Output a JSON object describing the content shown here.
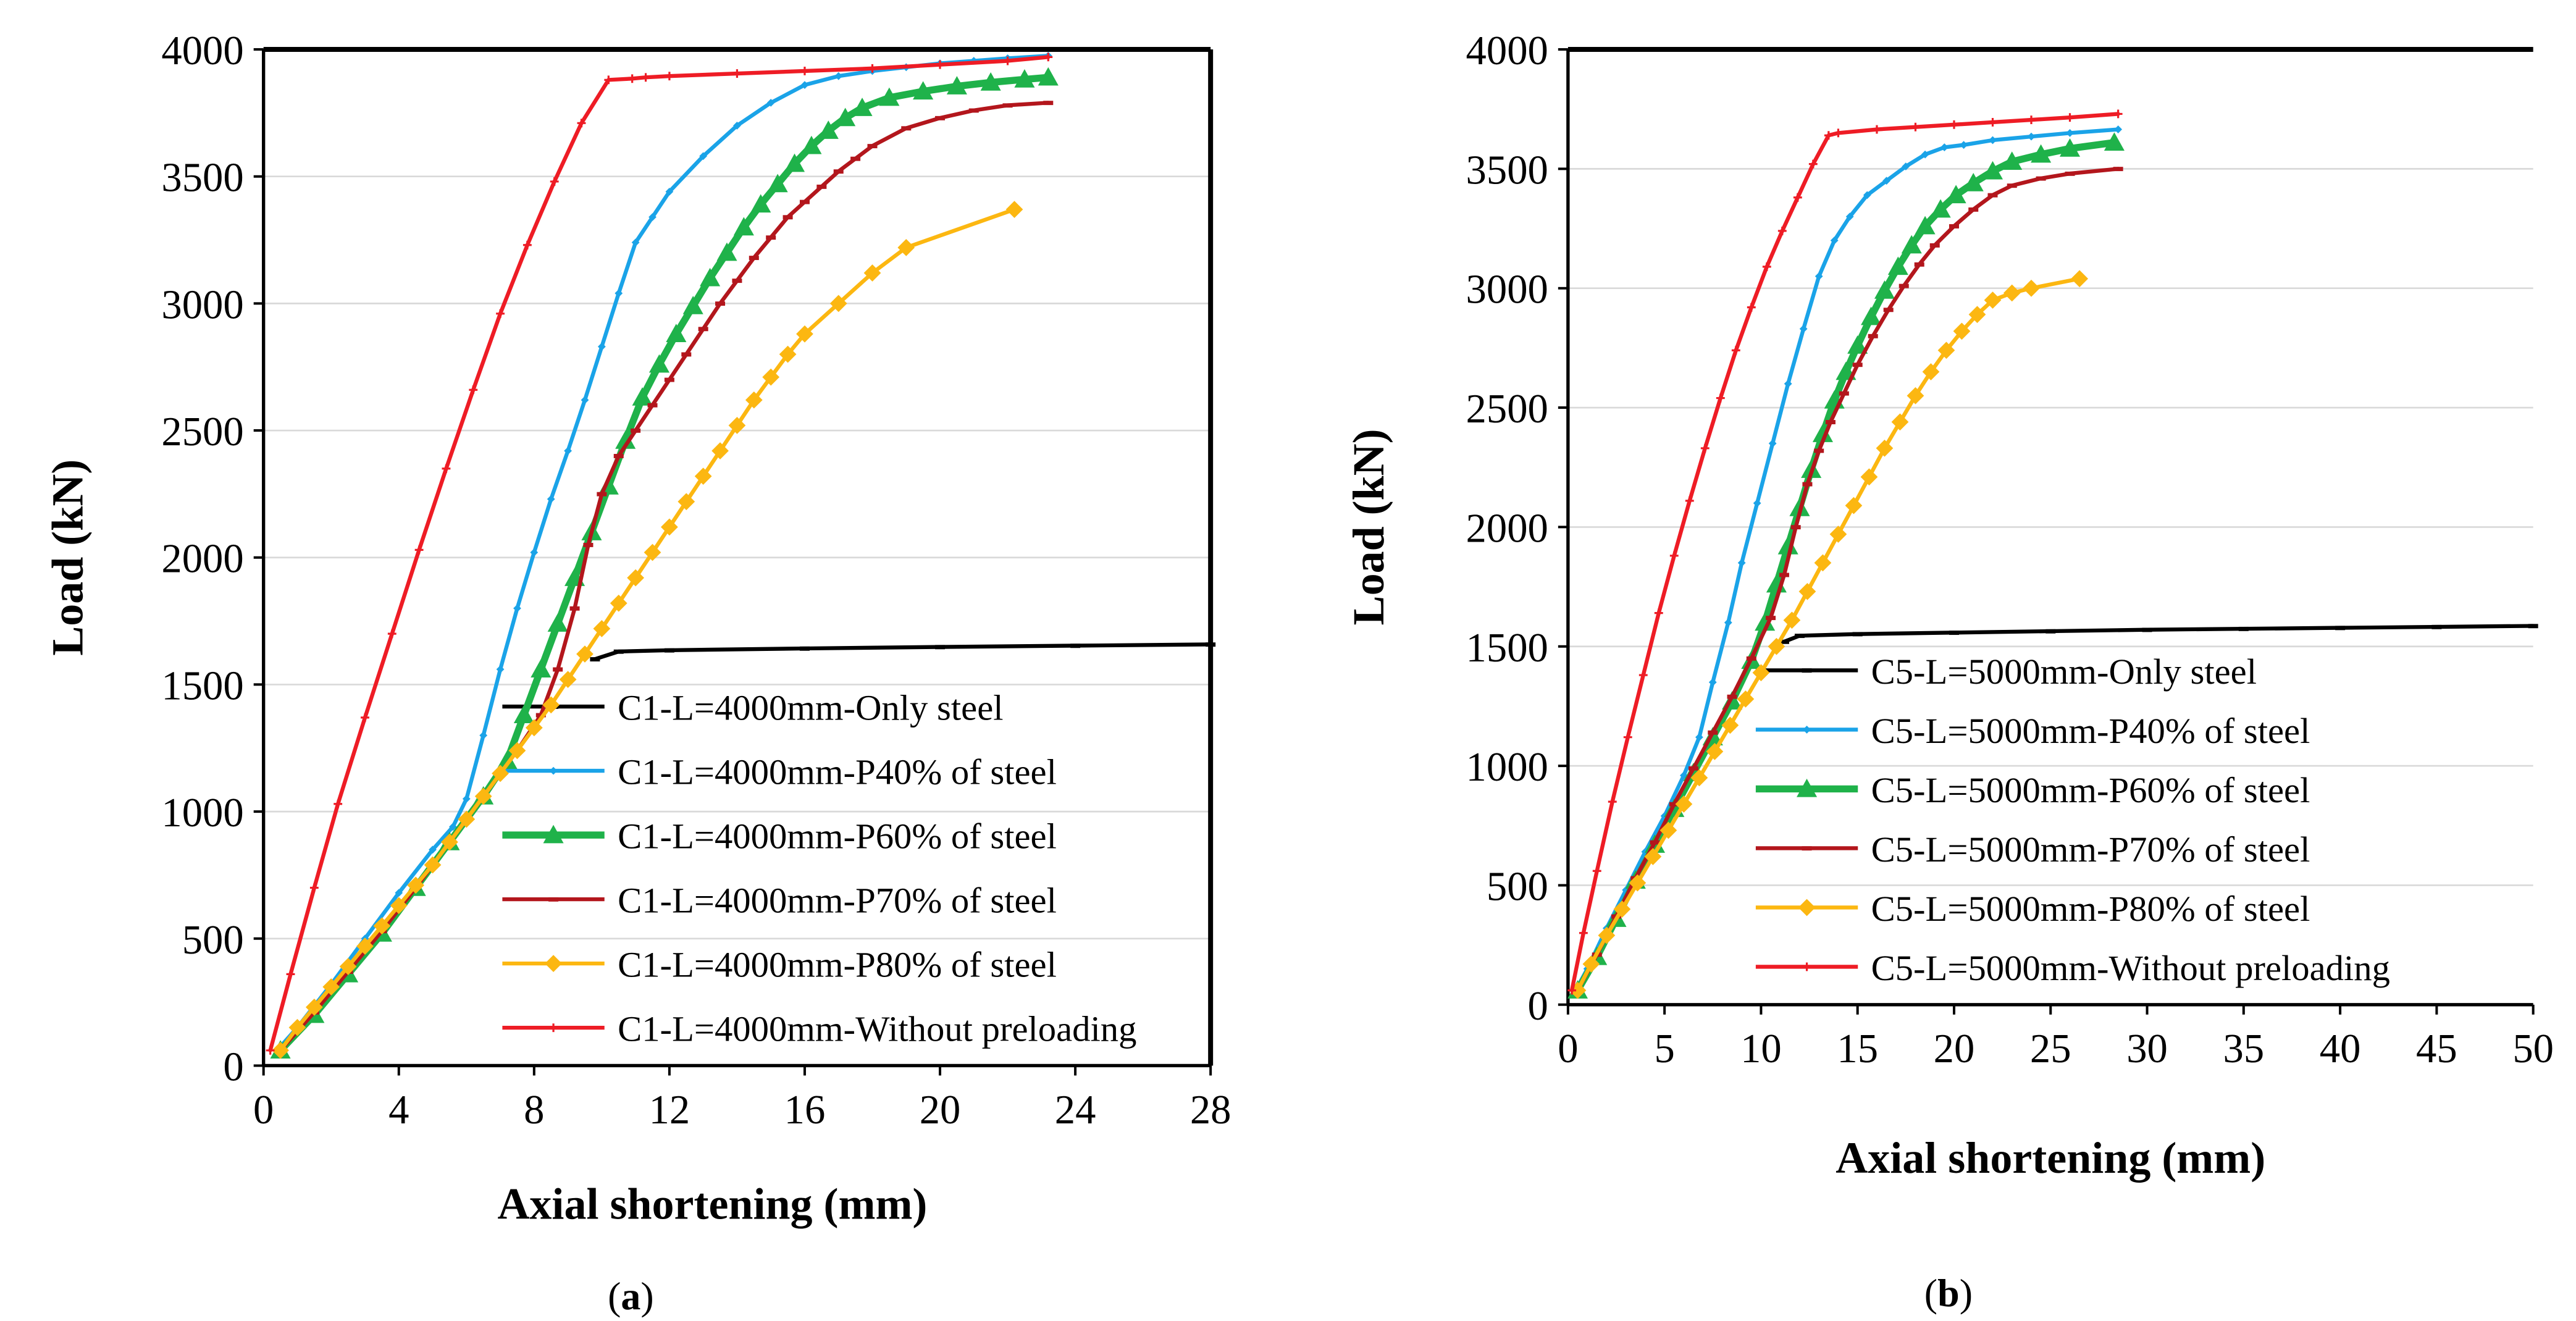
{
  "chart_data": [
    {
      "type": "line",
      "panel": "a",
      "caption_letter": "a",
      "xlabel": "Axial shortening (mm)",
      "ylabel": "Load (kN)",
      "xlim": [
        0,
        28
      ],
      "ylim": [
        0,
        4000
      ],
      "xticks": [
        0,
        4,
        8,
        12,
        16,
        20,
        24,
        28
      ],
      "yticks": [
        0,
        500,
        1000,
        1500,
        2000,
        2500,
        3000,
        3500,
        4000
      ],
      "grid": "horizontal",
      "legend_position": "bottom-right",
      "series": [
        {
          "name": "C1-L=4000mm-Only steel",
          "color": "#000000",
          "marker": "dash",
          "width": 5,
          "x": [
            9.8,
            10.5,
            12,
            16,
            20,
            24,
            28
          ],
          "y": [
            1600,
            1630,
            1635,
            1642,
            1648,
            1653,
            1658
          ]
        },
        {
          "name": "C1-L=4000mm-P40% of steel",
          "color": "#1aa3e8",
          "marker": "diamond-small",
          "width": 5,
          "x": [
            0.4,
            1,
            2,
            3,
            4,
            5,
            5.6,
            6,
            6.5,
            7,
            7.5,
            8,
            8.5,
            9,
            9.5,
            10,
            10.5,
            11,
            11.5,
            12,
            13,
            14,
            15,
            16,
            17,
            18,
            19,
            20,
            21,
            22,
            23.2
          ],
          "y": [
            60,
            150,
            320,
            500,
            680,
            850,
            940,
            1050,
            1300,
            1560,
            1800,
            2020,
            2230,
            2420,
            2620,
            2830,
            3040,
            3240,
            3340,
            3440,
            3580,
            3700,
            3790,
            3860,
            3895,
            3915,
            3930,
            3945,
            3955,
            3965,
            3975
          ]
        },
        {
          "name": "C1-L=4000mm-P60% of steel",
          "color": "#1fb24a",
          "marker": "triangle",
          "width": 9,
          "x": [
            0.5,
            1.5,
            2.5,
            3.5,
            4.5,
            5.5,
            6.5,
            7.2,
            7.7,
            8.2,
            8.7,
            9.2,
            9.7,
            10.2,
            10.7,
            11.2,
            11.7,
            12.2,
            12.7,
            13.2,
            13.7,
            14.2,
            14.7,
            15.2,
            15.7,
            16.2,
            16.7,
            17.2,
            17.7,
            18.5,
            19.5,
            20.5,
            21.5,
            22.5,
            23.2
          ],
          "y": [
            60,
            200,
            360,
            520,
            700,
            880,
            1060,
            1200,
            1380,
            1560,
            1740,
            1920,
            2100,
            2280,
            2460,
            2630,
            2760,
            2880,
            2990,
            3100,
            3200,
            3300,
            3390,
            3470,
            3550,
            3620,
            3680,
            3730,
            3770,
            3810,
            3835,
            3855,
            3870,
            3882,
            3890
          ]
        },
        {
          "name": "C1-L=4000mm-P70% of steel",
          "color": "#b3161c",
          "marker": "dash",
          "width": 5,
          "x": [
            0.5,
            1.5,
            2.5,
            3.5,
            4.5,
            5.5,
            6.5,
            7.5,
            8.2,
            8.7,
            9.2,
            9.6,
            10,
            10.5,
            11,
            11.5,
            12,
            12.5,
            13,
            13.5,
            14,
            14.5,
            15,
            15.5,
            16,
            16.5,
            17,
            17.5,
            18,
            19,
            20,
            21,
            22,
            23.2
          ],
          "y": [
            60,
            210,
            370,
            530,
            700,
            880,
            1060,
            1240,
            1380,
            1560,
            1800,
            2050,
            2250,
            2400,
            2500,
            2600,
            2700,
            2800,
            2900,
            3000,
            3090,
            3180,
            3260,
            3340,
            3400,
            3460,
            3520,
            3570,
            3620,
            3690,
            3730,
            3760,
            3780,
            3790
          ]
        },
        {
          "name": "C1-L=4000mm-P80% of steel",
          "color": "#fcb711",
          "marker": "diamond",
          "width": 5,
          "x": [
            0.5,
            1,
            1.5,
            2,
            2.5,
            3,
            3.5,
            4,
            4.5,
            5,
            5.5,
            6,
            6.5,
            7,
            7.5,
            8,
            8.5,
            9,
            9.5,
            10,
            10.5,
            11,
            11.5,
            12,
            12.5,
            13,
            13.5,
            14,
            14.5,
            15,
            15.5,
            16,
            17,
            18,
            19,
            22.2
          ],
          "y": [
            60,
            150,
            230,
            310,
            390,
            470,
            550,
            630,
            710,
            790,
            880,
            970,
            1060,
            1150,
            1240,
            1330,
            1420,
            1520,
            1620,
            1720,
            1820,
            1920,
            2020,
            2120,
            2220,
            2320,
            2420,
            2520,
            2620,
            2710,
            2800,
            2880,
            3000,
            3120,
            3220,
            3370
          ]
        },
        {
          "name": "C1-L=4000mm-Without preloading",
          "color": "#ee1c25",
          "marker": "plus",
          "width": 5,
          "x": [
            0.2,
            0.8,
            1.5,
            2.2,
            3,
            3.8,
            4.6,
            5.4,
            6.2,
            7,
            7.8,
            8.6,
            9.4,
            10.2,
            10.9,
            11.3,
            12,
            14,
            16,
            18,
            20,
            22,
            23.2
          ],
          "y": [
            60,
            360,
            700,
            1030,
            1370,
            1700,
            2030,
            2350,
            2660,
            2960,
            3230,
            3480,
            3710,
            3880,
            3885,
            3890,
            3895,
            3905,
            3915,
            3925,
            3940,
            3955,
            3970
          ]
        }
      ],
      "caption": "(a)"
    },
    {
      "type": "line",
      "panel": "b",
      "caption_letter": "b",
      "xlabel": "Axial shortening (mm)",
      "ylabel": "Load (kN)",
      "xlim": [
        0,
        50
      ],
      "ylim": [
        0,
        4000
      ],
      "xticks": [
        0,
        5,
        10,
        15,
        20,
        25,
        30,
        35,
        40,
        45,
        50
      ],
      "yticks": [
        0,
        500,
        1000,
        1500,
        2000,
        2500,
        3000,
        3500,
        4000
      ],
      "grid": "horizontal",
      "legend_position": "bottom-right",
      "series": [
        {
          "name": "C5-L=5000mm-Only steel",
          "color": "#000000",
          "marker": "dash",
          "width": 5,
          "x": [
            11.2,
            12,
            15,
            20,
            25,
            30,
            35,
            40,
            45,
            50
          ],
          "y": [
            1520,
            1545,
            1552,
            1558,
            1564,
            1570,
            1574,
            1578,
            1582,
            1586
          ]
        },
        {
          "name": "C5-L=5000mm-P40% of steel",
          "color": "#1aa3e8",
          "marker": "diamond-small",
          "width": 5,
          "x": [
            0.4,
            1,
            2,
            3,
            4,
            5,
            6,
            6.8,
            7.5,
            8.3,
            9,
            9.8,
            10.6,
            11.4,
            12.2,
            13,
            13.8,
            14.6,
            15.5,
            16.5,
            17.5,
            18.5,
            19.5,
            20.5,
            22,
            24,
            26,
            28.5
          ],
          "y": [
            60,
            150,
            320,
            480,
            640,
            790,
            960,
            1120,
            1350,
            1600,
            1850,
            2100,
            2350,
            2600,
            2830,
            3050,
            3200,
            3300,
            3390,
            3450,
            3510,
            3560,
            3590,
            3600,
            3620,
            3635,
            3650,
            3665
          ]
        },
        {
          "name": "C5-L=5000mm-P60% of steel",
          "color": "#1fb24a",
          "marker": "triangle",
          "width": 9,
          "x": [
            0.5,
            1.5,
            2.5,
            3.5,
            4.5,
            5.5,
            6.5,
            7.5,
            8.5,
            9.5,
            10.2,
            10.8,
            11.4,
            12,
            12.6,
            13.2,
            13.8,
            14.4,
            15,
            15.7,
            16.4,
            17.1,
            17.8,
            18.5,
            19.3,
            20.1,
            21,
            22,
            23,
            24.5,
            26,
            28.3
          ],
          "y": [
            60,
            200,
            360,
            520,
            670,
            820,
            970,
            1120,
            1270,
            1440,
            1600,
            1760,
            1920,
            2080,
            2240,
            2390,
            2530,
            2650,
            2760,
            2880,
            2990,
            3090,
            3180,
            3260,
            3330,
            3390,
            3440,
            3490,
            3530,
            3560,
            3585,
            3610
          ]
        },
        {
          "name": "C5-L=5000mm-P70% of steel",
          "color": "#b3161c",
          "marker": "dash",
          "width": 5,
          "x": [
            0.5,
            1.5,
            2.5,
            3.5,
            4.5,
            5.5,
            6.5,
            7.5,
            8.5,
            9.5,
            10.5,
            11.2,
            11.8,
            12.4,
            13,
            13.6,
            14.3,
            15,
            15.8,
            16.6,
            17.4,
            18.2,
            19,
            20,
            21,
            22,
            23,
            24.5,
            26,
            28.5
          ],
          "y": [
            60,
            210,
            370,
            530,
            680,
            840,
            990,
            1140,
            1290,
            1450,
            1620,
            1800,
            2000,
            2180,
            2320,
            2440,
            2560,
            2680,
            2800,
            2910,
            3010,
            3100,
            3180,
            3260,
            3330,
            3390,
            3430,
            3460,
            3480,
            3500
          ]
        },
        {
          "name": "C5-L=5000mm-P80% of steel",
          "color": "#fcb711",
          "marker": "diamond",
          "width": 5,
          "x": [
            0.5,
            1.2,
            2,
            2.8,
            3.6,
            4.4,
            5.2,
            6,
            6.8,
            7.6,
            8.4,
            9.2,
            10,
            10.8,
            11.6,
            12.4,
            13.2,
            14,
            14.8,
            15.6,
            16.4,
            17.2,
            18,
            18.8,
            19.6,
            20.4,
            21.2,
            22,
            23,
            24,
            26.5
          ],
          "y": [
            60,
            170,
            290,
            400,
            510,
            620,
            730,
            840,
            950,
            1060,
            1170,
            1280,
            1390,
            1500,
            1610,
            1730,
            1850,
            1970,
            2090,
            2210,
            2330,
            2440,
            2550,
            2650,
            2740,
            2820,
            2890,
            2950,
            2980,
            3000,
            3040
          ]
        },
        {
          "name": "C5-L=5000mm-Without preloading",
          "color": "#ee1c25",
          "marker": "plus",
          "width": 5,
          "x": [
            0.2,
            0.8,
            1.5,
            2.3,
            3.1,
            3.9,
            4.7,
            5.5,
            6.3,
            7.1,
            7.9,
            8.7,
            9.5,
            10.3,
            11.1,
            11.9,
            12.7,
            13.5,
            14,
            16,
            18,
            20,
            22,
            24,
            26,
            28.5
          ],
          "y": [
            60,
            300,
            560,
            850,
            1120,
            1380,
            1640,
            1880,
            2110,
            2330,
            2540,
            2740,
            2920,
            3090,
            3240,
            3380,
            3520,
            3640,
            3650,
            3665,
            3675,
            3685,
            3695,
            3705,
            3715,
            3730
          ]
        }
      ],
      "caption": "(b)"
    }
  ]
}
